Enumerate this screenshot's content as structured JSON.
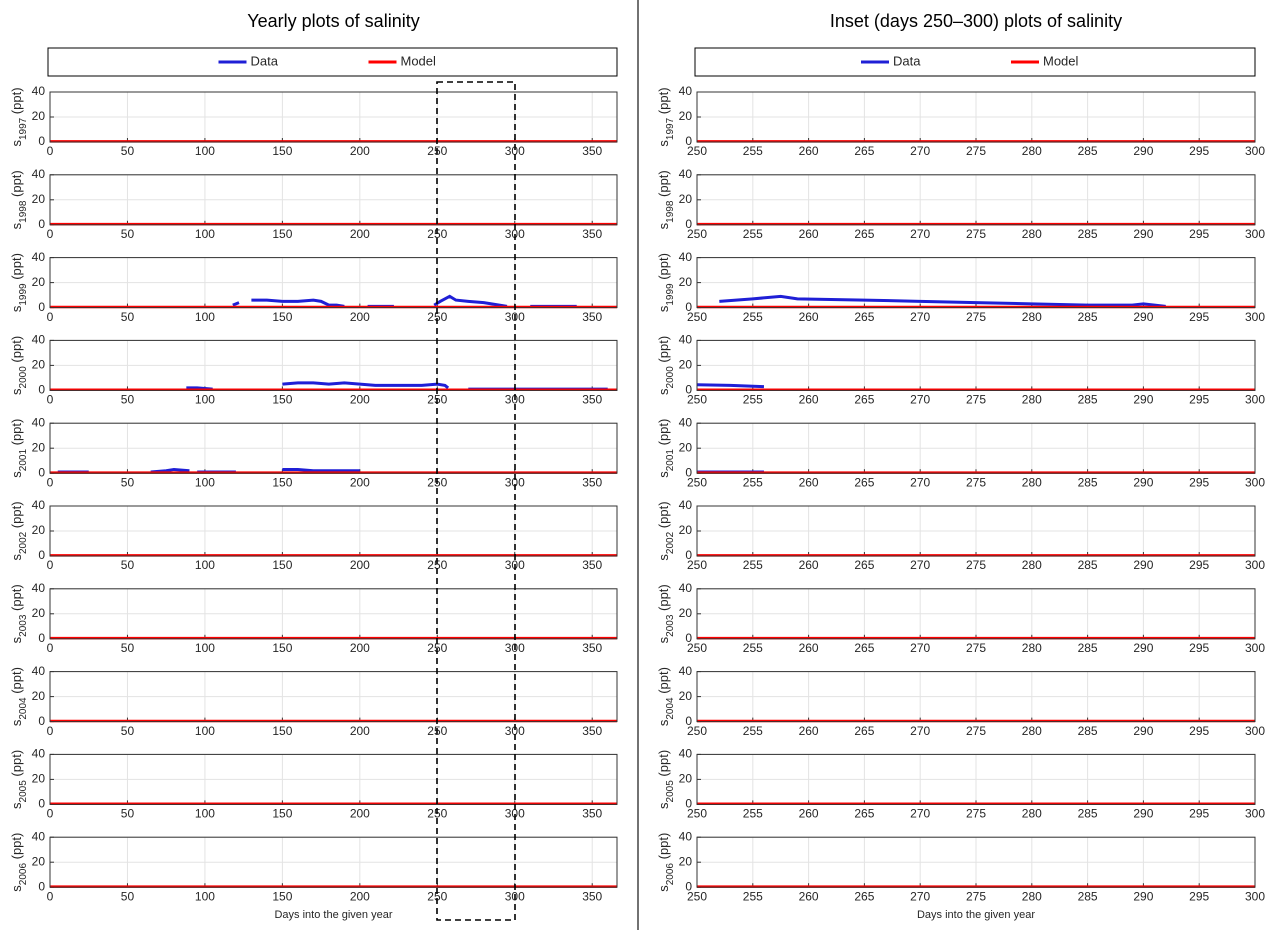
{
  "chart_data": [
    {
      "type": "line",
      "title": "Yearly plots of salinity",
      "legend": true,
      "ylabel": "s",
      "ylabel_sub": "1997",
      "ylabel_unit": "(ppt)",
      "xlim": [
        0,
        366
      ],
      "xticks": [
        0,
        50,
        100,
        150,
        200,
        250,
        300,
        350
      ],
      "ylim": [
        0,
        40
      ],
      "yticks": [
        0,
        20,
        40
      ],
      "grid": true,
      "series": [
        {
          "name": "Data",
          "color": "#1f1fd6",
          "x": [],
          "values": []
        },
        {
          "name": "Model",
          "color": "#ff0000",
          "x": [
            0,
            366
          ],
          "values": [
            0.5,
            0.5
          ]
        }
      ]
    },
    {
      "type": "line",
      "ylabel": "s",
      "ylabel_sub": "1998",
      "ylabel_unit": "(ppt)",
      "xlim": [
        0,
        366
      ],
      "xticks": [
        0,
        50,
        100,
        150,
        200,
        250,
        300,
        350
      ],
      "ylim": [
        0,
        40
      ],
      "yticks": [
        0,
        20,
        40
      ],
      "grid": true,
      "series": [
        {
          "name": "Data",
          "color": "#1f1fd6",
          "x": [],
          "values": []
        },
        {
          "name": "Model",
          "color": "#ff0000",
          "x": [
            0,
            366
          ],
          "values": [
            0.5,
            0.5
          ]
        }
      ]
    },
    {
      "type": "line",
      "ylabel": "s",
      "ylabel_sub": "1999",
      "ylabel_unit": "(ppt)",
      "xlim": [
        0,
        366
      ],
      "xticks": [
        0,
        50,
        100,
        150,
        200,
        250,
        300,
        350
      ],
      "ylim": [
        0,
        40
      ],
      "yticks": [
        0,
        20,
        40
      ],
      "grid": true,
      "series": [
        {
          "name": "Data",
          "color": "#1f1fd6",
          "x": [
            118,
            122,
            123,
            130,
            140,
            150,
            160,
            170,
            175,
            180,
            185,
            190,
            191,
            205,
            215,
            222,
            223,
            248,
            252,
            258,
            262,
            270,
            280,
            290,
            295,
            296,
            310,
            340
          ],
          "values": [
            2,
            4,
            null,
            6,
            6,
            5,
            5,
            6,
            5,
            2,
            2,
            1,
            null,
            1,
            1,
            1,
            null,
            2,
            5,
            9,
            6,
            5,
            4,
            2,
            1,
            null,
            1,
            1
          ]
        },
        {
          "name": "Model",
          "color": "#ff0000",
          "x": [
            0,
            366
          ],
          "values": [
            0.5,
            0.5
          ]
        }
      ]
    },
    {
      "type": "line",
      "ylabel": "s",
      "ylabel_sub": "2000",
      "ylabel_unit": "(ppt)",
      "xlim": [
        0,
        366
      ],
      "xticks": [
        0,
        50,
        100,
        150,
        200,
        250,
        300,
        350
      ],
      "ylim": [
        0,
        40
      ],
      "yticks": [
        0,
        20,
        40
      ],
      "grid": true,
      "series": [
        {
          "name": "Data",
          "color": "#1f1fd6",
          "x": [
            88,
            95,
            105,
            106,
            150,
            160,
            170,
            180,
            190,
            200,
            210,
            220,
            230,
            240,
            250,
            255,
            257,
            258,
            270,
            300,
            340,
            360
          ],
          "values": [
            2,
            2,
            1,
            null,
            5,
            6,
            6,
            5,
            6,
            5,
            4,
            4,
            4,
            4,
            5,
            4,
            2,
            null,
            1,
            1,
            1,
            1
          ]
        },
        {
          "name": "Model",
          "color": "#ff0000",
          "x": [
            0,
            366
          ],
          "values": [
            0.5,
            0.5
          ]
        }
      ]
    },
    {
      "type": "line",
      "ylabel": "s",
      "ylabel_sub": "2001",
      "ylabel_unit": "(ppt)",
      "xlim": [
        0,
        366
      ],
      "xticks": [
        0,
        50,
        100,
        150,
        200,
        250,
        300,
        350
      ],
      "ylim": [
        0,
        40
      ],
      "yticks": [
        0,
        20,
        40
      ],
      "grid": true,
      "series": [
        {
          "name": "Data",
          "color": "#1f1fd6",
          "x": [
            5,
            25,
            26,
            65,
            75,
            80,
            90,
            91,
            95,
            120,
            121,
            150,
            160,
            170,
            180,
            190,
            200
          ],
          "values": [
            1,
            1,
            null,
            1,
            2,
            3,
            2,
            null,
            1,
            1,
            null,
            3,
            3,
            2,
            2,
            2,
            2
          ]
        },
        {
          "name": "Model",
          "color": "#ff0000",
          "x": [
            0,
            366
          ],
          "values": [
            0.5,
            0.5
          ]
        }
      ]
    },
    {
      "type": "line",
      "ylabel": "s",
      "ylabel_sub": "2002",
      "ylabel_unit": "(ppt)",
      "xlim": [
        0,
        366
      ],
      "xticks": [
        0,
        50,
        100,
        150,
        200,
        250,
        300,
        350
      ],
      "ylim": [
        0,
        40
      ],
      "yticks": [
        0,
        20,
        40
      ],
      "grid": true,
      "series": [
        {
          "name": "Data",
          "color": "#1f1fd6",
          "x": [],
          "values": []
        },
        {
          "name": "Model",
          "color": "#ff0000",
          "x": [
            0,
            366
          ],
          "values": [
            0.5,
            0.5
          ]
        }
      ]
    },
    {
      "type": "line",
      "ylabel": "s",
      "ylabel_sub": "2003",
      "ylabel_unit": "(ppt)",
      "xlim": [
        0,
        366
      ],
      "xticks": [
        0,
        50,
        100,
        150,
        200,
        250,
        300,
        350
      ],
      "ylim": [
        0,
        40
      ],
      "yticks": [
        0,
        20,
        40
      ],
      "grid": true,
      "series": [
        {
          "name": "Data",
          "color": "#1f1fd6",
          "x": [],
          "values": []
        },
        {
          "name": "Model",
          "color": "#ff0000",
          "x": [
            0,
            366
          ],
          "values": [
            0.5,
            0.5
          ]
        }
      ]
    },
    {
      "type": "line",
      "ylabel": "s",
      "ylabel_sub": "2004",
      "ylabel_unit": "(ppt)",
      "xlim": [
        0,
        366
      ],
      "xticks": [
        0,
        50,
        100,
        150,
        200,
        250,
        300,
        350
      ],
      "ylim": [
        0,
        40
      ],
      "yticks": [
        0,
        20,
        40
      ],
      "grid": true,
      "series": [
        {
          "name": "Data",
          "color": "#1f1fd6",
          "x": [],
          "values": []
        },
        {
          "name": "Model",
          "color": "#ff0000",
          "x": [
            0,
            366
          ],
          "values": [
            0.5,
            0.5
          ]
        }
      ]
    },
    {
      "type": "line",
      "ylabel": "s",
      "ylabel_sub": "2005",
      "ylabel_unit": "(ppt)",
      "xlim": [
        0,
        366
      ],
      "xticks": [
        0,
        50,
        100,
        150,
        200,
        250,
        300,
        350
      ],
      "ylim": [
        0,
        40
      ],
      "yticks": [
        0,
        20,
        40
      ],
      "grid": true,
      "series": [
        {
          "name": "Data",
          "color": "#1f1fd6",
          "x": [],
          "values": []
        },
        {
          "name": "Model",
          "color": "#ff0000",
          "x": [
            0,
            366
          ],
          "values": [
            0.5,
            0.5
          ]
        }
      ]
    },
    {
      "type": "line",
      "ylabel": "s",
      "ylabel_sub": "2006",
      "ylabel_unit": "(ppt)",
      "xlabel": "Days into the given year",
      "xlim": [
        0,
        366
      ],
      "xticks": [
        0,
        50,
        100,
        150,
        200,
        250,
        300,
        350
      ],
      "ylim": [
        0,
        40
      ],
      "yticks": [
        0,
        20,
        40
      ],
      "grid": true,
      "series": [
        {
          "name": "Data",
          "color": "#1f1fd6",
          "x": [],
          "values": []
        },
        {
          "name": "Model",
          "color": "#ff0000",
          "x": [
            0,
            366
          ],
          "values": [
            0.5,
            0.5
          ]
        }
      ]
    },
    {
      "type": "line",
      "title": "Inset (days 250–300) plots of salinity",
      "legend": true,
      "ylabel": "s",
      "ylabel_sub": "1997",
      "ylabel_unit": "(ppt)",
      "xlim": [
        250,
        300
      ],
      "xticks": [
        250,
        255,
        260,
        265,
        270,
        275,
        280,
        285,
        290,
        295,
        300
      ],
      "ylim": [
        0,
        40
      ],
      "yticks": [
        0,
        20,
        40
      ],
      "grid": true,
      "series": [
        {
          "name": "Data",
          "color": "#1f1fd6",
          "x": [],
          "values": []
        },
        {
          "name": "Model",
          "color": "#ff0000",
          "x": [
            250,
            300
          ],
          "values": [
            0.5,
            0.5
          ]
        }
      ]
    },
    {
      "type": "line",
      "ylabel": "s",
      "ylabel_sub": "1998",
      "ylabel_unit": "(ppt)",
      "xlim": [
        250,
        300
      ],
      "xticks": [
        250,
        255,
        260,
        265,
        270,
        275,
        280,
        285,
        290,
        295,
        300
      ],
      "ylim": [
        0,
        40
      ],
      "yticks": [
        0,
        20,
        40
      ],
      "grid": true,
      "series": [
        {
          "name": "Data",
          "color": "#1f1fd6",
          "x": [],
          "values": []
        },
        {
          "name": "Model",
          "color": "#ff0000",
          "x": [
            250,
            300
          ],
          "values": [
            0.5,
            0.5
          ]
        }
      ]
    },
    {
      "type": "line",
      "ylabel": "s",
      "ylabel_sub": "1999",
      "ylabel_unit": "(ppt)",
      "xlim": [
        250,
        300
      ],
      "xticks": [
        250,
        255,
        260,
        265,
        270,
        275,
        280,
        285,
        290,
        295,
        300
      ],
      "ylim": [
        0,
        40
      ],
      "yticks": [
        0,
        20,
        40
      ],
      "grid": true,
      "series": [
        {
          "name": "Data",
          "color": "#1f1fd6",
          "x": [
            252,
            255,
            257.5,
            259,
            265,
            270,
            275,
            280,
            285,
            289,
            290,
            292
          ],
          "values": [
            5,
            7,
            9,
            7,
            6,
            5,
            4,
            3,
            2,
            2,
            3,
            1
          ]
        },
        {
          "name": "Model",
          "color": "#ff0000",
          "x": [
            250,
            300
          ],
          "values": [
            0.5,
            0.5
          ]
        }
      ]
    },
    {
      "type": "line",
      "ylabel": "s",
      "ylabel_sub": "2000",
      "ylabel_unit": "(ppt)",
      "xlim": [
        250,
        300
      ],
      "xticks": [
        250,
        255,
        260,
        265,
        270,
        275,
        280,
        285,
        290,
        295,
        300
      ],
      "ylim": [
        0,
        40
      ],
      "yticks": [
        0,
        20,
        40
      ],
      "grid": true,
      "series": [
        {
          "name": "Data",
          "color": "#1f1fd6",
          "x": [
            250,
            253,
            256
          ],
          "values": [
            4.5,
            4,
            3
          ]
        },
        {
          "name": "Model",
          "color": "#ff0000",
          "x": [
            250,
            300
          ],
          "values": [
            0.5,
            0.5
          ]
        }
      ]
    },
    {
      "type": "line",
      "ylabel": "s",
      "ylabel_sub": "2001",
      "ylabel_unit": "(ppt)",
      "xlim": [
        250,
        300
      ],
      "xticks": [
        250,
        255,
        260,
        265,
        270,
        275,
        280,
        285,
        290,
        295,
        300
      ],
      "ylim": [
        0,
        40
      ],
      "yticks": [
        0,
        20,
        40
      ],
      "grid": true,
      "series": [
        {
          "name": "Data",
          "color": "#1f1fd6",
          "x": [
            250,
            256
          ],
          "values": [
            1,
            1
          ]
        },
        {
          "name": "Model",
          "color": "#ff0000",
          "x": [
            250,
            300
          ],
          "values": [
            0.5,
            0.5
          ]
        }
      ]
    },
    {
      "type": "line",
      "ylabel": "s",
      "ylabel_sub": "2002",
      "ylabel_unit": "(ppt)",
      "xlim": [
        250,
        300
      ],
      "xticks": [
        250,
        255,
        260,
        265,
        270,
        275,
        280,
        285,
        290,
        295,
        300
      ],
      "ylim": [
        0,
        40
      ],
      "yticks": [
        0,
        20,
        40
      ],
      "grid": true,
      "series": [
        {
          "name": "Data",
          "color": "#1f1fd6",
          "x": [],
          "values": []
        },
        {
          "name": "Model",
          "color": "#ff0000",
          "x": [
            250,
            300
          ],
          "values": [
            0.5,
            0.5
          ]
        }
      ]
    },
    {
      "type": "line",
      "ylabel": "s",
      "ylabel_sub": "2003",
      "ylabel_unit": "(ppt)",
      "xlim": [
        250,
        300
      ],
      "xticks": [
        250,
        255,
        260,
        265,
        270,
        275,
        280,
        285,
        290,
        295,
        300
      ],
      "ylim": [
        0,
        40
      ],
      "yticks": [
        0,
        20,
        40
      ],
      "grid": true,
      "series": [
        {
          "name": "Data",
          "color": "#1f1fd6",
          "x": [],
          "values": []
        },
        {
          "name": "Model",
          "color": "#ff0000",
          "x": [
            250,
            300
          ],
          "values": [
            0.5,
            0.5
          ]
        }
      ]
    },
    {
      "type": "line",
      "ylabel": "s",
      "ylabel_sub": "2004",
      "ylabel_unit": "(ppt)",
      "xlim": [
        250,
        300
      ],
      "xticks": [
        250,
        255,
        260,
        265,
        270,
        275,
        280,
        285,
        290,
        295,
        300
      ],
      "ylim": [
        0,
        40
      ],
      "yticks": [
        0,
        20,
        40
      ],
      "grid": true,
      "series": [
        {
          "name": "Data",
          "color": "#1f1fd6",
          "x": [],
          "values": []
        },
        {
          "name": "Model",
          "color": "#ff0000",
          "x": [
            250,
            300
          ],
          "values": [
            0.5,
            0.5
          ]
        }
      ]
    },
    {
      "type": "line",
      "ylabel": "s",
      "ylabel_sub": "2005",
      "ylabel_unit": "(ppt)",
      "xlim": [
        250,
        300
      ],
      "xticks": [
        250,
        255,
        260,
        265,
        270,
        275,
        280,
        285,
        290,
        295,
        300
      ],
      "ylim": [
        0,
        40
      ],
      "yticks": [
        0,
        20,
        40
      ],
      "grid": true,
      "series": [
        {
          "name": "Data",
          "color": "#1f1fd6",
          "x": [],
          "values": []
        },
        {
          "name": "Model",
          "color": "#ff0000",
          "x": [
            250,
            300
          ],
          "values": [
            0.5,
            0.5
          ]
        }
      ]
    },
    {
      "type": "line",
      "ylabel": "s",
      "ylabel_sub": "2006",
      "ylabel_unit": "(ppt)",
      "xlabel": "Days into the given year",
      "xlim": [
        250,
        300
      ],
      "xticks": [
        250,
        255,
        260,
        265,
        270,
        275,
        280,
        285,
        290,
        295,
        300
      ],
      "ylim": [
        0,
        40
      ],
      "yticks": [
        0,
        20,
        40
      ],
      "grid": true,
      "series": [
        {
          "name": "Data",
          "color": "#1f1fd6",
          "x": [],
          "values": []
        },
        {
          "name": "Model",
          "color": "#ff0000",
          "x": [
            250,
            300
          ],
          "values": [
            0.5,
            0.5
          ]
        }
      ]
    }
  ]
}
